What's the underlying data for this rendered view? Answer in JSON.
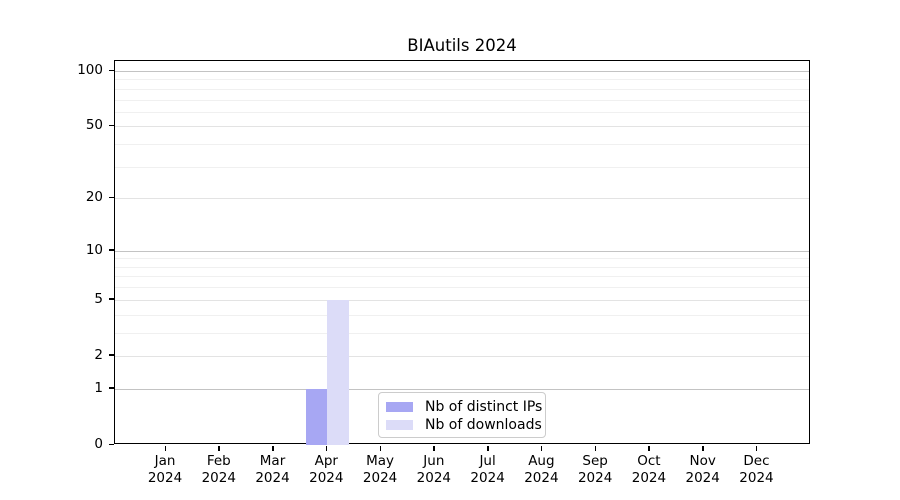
{
  "window": {
    "background": "#ffffff"
  },
  "chart_data": {
    "type": "bar",
    "title": "BIAutils 2024",
    "xlabel": "",
    "ylabel": "",
    "categories": [
      "Jan",
      "Feb",
      "Mar",
      "Apr",
      "May",
      "Jun",
      "Jul",
      "Aug",
      "Sep",
      "Oct",
      "Nov",
      "Dec"
    ],
    "year_label": "2024",
    "series": [
      {
        "name": "Nb of distinct IPs",
        "color": "#a7a7f3",
        "values": [
          0,
          0,
          0,
          1,
          0,
          0,
          0,
          0,
          0,
          0,
          0,
          0
        ]
      },
      {
        "name": "Nb of downloads",
        "color": "#dcdcf8",
        "values": [
          0,
          0,
          0,
          5,
          0,
          0,
          0,
          0,
          0,
          0,
          0,
          0
        ]
      }
    ],
    "y_axis": {
      "scale": "log1p",
      "ylim": [
        0,
        113
      ],
      "tick_values": [
        0,
        1,
        2,
        5,
        10,
        20,
        50,
        100
      ],
      "tick_labels": [
        "0",
        "1",
        "2",
        "5",
        "10",
        "20",
        "50",
        "100"
      ],
      "decade_grid_values": [
        1,
        10,
        100
      ],
      "labeled_sub_grid_values": [
        2,
        5,
        20,
        50
      ],
      "minor_grid_values": [
        3,
        4,
        6,
        7,
        8,
        9,
        30,
        40,
        60,
        70,
        80,
        90
      ]
    },
    "grid": "both",
    "legend_position": "lower center",
    "legend_items": [
      "Nb of distinct IPs",
      "Nb of downloads"
    ]
  }
}
